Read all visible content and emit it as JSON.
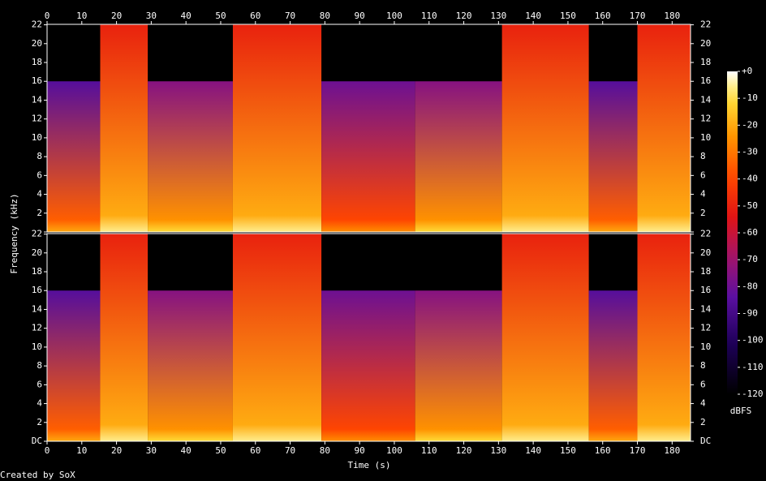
{
  "chart_data": {
    "type": "spectrogram",
    "xlabel": "Time (s)",
    "ylabel": "Frequency (kHz)",
    "colorbar_label": "dBFS",
    "credit": "Created by SoX",
    "xlim": [
      0,
      185.3
    ],
    "xticks": [
      0,
      10,
      20,
      30,
      40,
      50,
      60,
      70,
      80,
      90,
      100,
      110,
      120,
      130,
      140,
      150,
      160,
      170,
      180
    ],
    "ylim": [
      0,
      22.05
    ],
    "yticks": [
      {
        "value": 0,
        "label": "DC"
      },
      2,
      4,
      6,
      8,
      10,
      12,
      14,
      16,
      18,
      20,
      22
    ],
    "clim": [
      -120,
      0
    ],
    "cticks": [
      {
        "value": 0,
        "label": "+0"
      },
      -10,
      -20,
      -30,
      -40,
      -50,
      -60,
      -70,
      -80,
      -90,
      -100,
      -110,
      -120
    ],
    "channels": 2,
    "segments": [
      {
        "start": 0,
        "end": 15.3,
        "cutoff": 16,
        "low_db": -35,
        "high_db": -85
      },
      {
        "start": 15.3,
        "end": 29,
        "cutoff": 22,
        "low_db": -20,
        "high_db": -50
      },
      {
        "start": 29,
        "end": 53.5,
        "cutoff": 16,
        "low_db": -25,
        "high_db": -75
      },
      {
        "start": 53.5,
        "end": 79,
        "cutoff": 22,
        "low_db": -20,
        "high_db": -50
      },
      {
        "start": 79,
        "end": 106,
        "cutoff": 16,
        "low_db": -40,
        "high_db": -80
      },
      {
        "start": 106,
        "end": 131,
        "cutoff": 16,
        "low_db": -25,
        "high_db": -75
      },
      {
        "start": 131,
        "end": 156,
        "cutoff": 22,
        "low_db": -20,
        "high_db": -50
      },
      {
        "start": 156,
        "end": 170,
        "cutoff": 16,
        "low_db": -35,
        "high_db": -85
      },
      {
        "start": 170,
        "end": 185.3,
        "cutoff": 22,
        "low_db": -20,
        "high_db": -50
      }
    ]
  }
}
